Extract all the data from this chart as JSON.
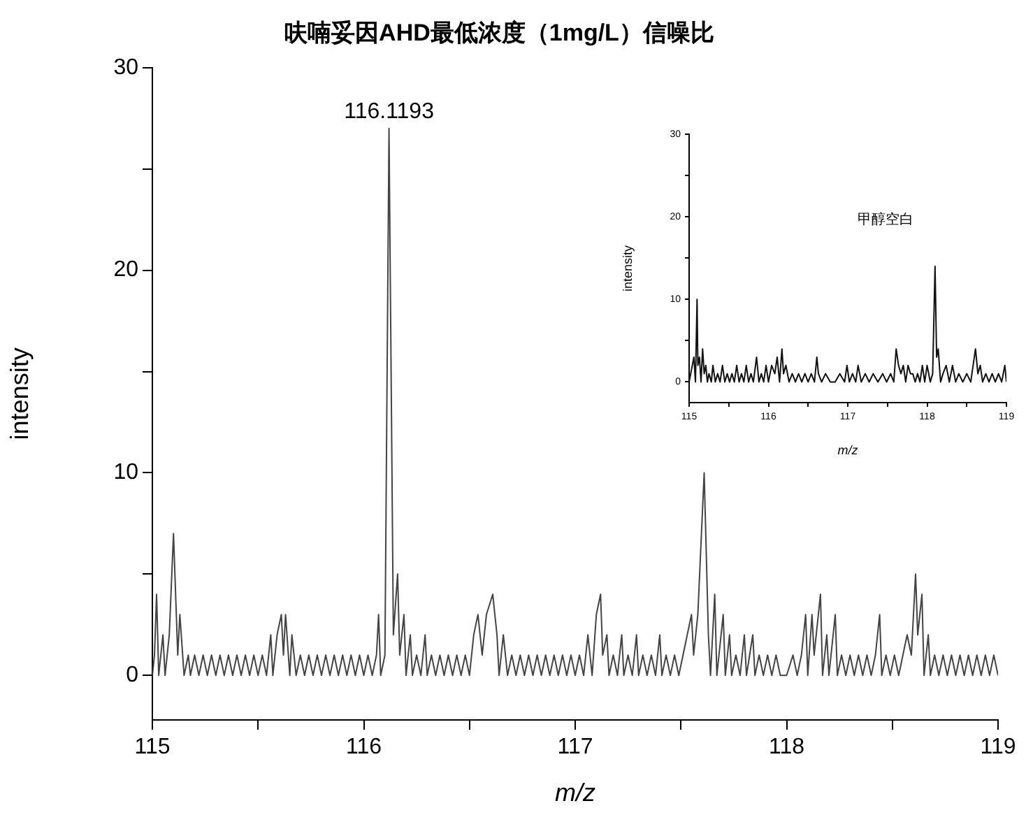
{
  "chart_data": [
    {
      "type": "line",
      "title": "呋喃妥因AHD最低浓度（1mg/L）信噪比",
      "xlabel": "m/z",
      "ylabel": "intensity",
      "grid": false,
      "legend": false,
      "marker": "none",
      "line_style": "solid",
      "xlim": [
        115,
        119
      ],
      "ylim": [
        -2.2,
        30
      ],
      "xticks": [
        115,
        {
          "value": 115.5,
          "label": null
        },
        116,
        {
          "value": 116.5,
          "label": null
        },
        117,
        {
          "value": 117.5,
          "label": null
        },
        118,
        {
          "value": 118.5,
          "label": null
        },
        119
      ],
      "yticks": [
        0,
        {
          "value": 5,
          "label": null
        },
        10,
        {
          "value": 15,
          "label": null
        },
        20,
        {
          "value": 25,
          "label": null
        },
        30
      ],
      "annotations": [
        {
          "text": "116.1193",
          "x": 116.1193,
          "y": 27
        }
      ],
      "series": [
        {
          "color": "#444444",
          "x": [
            115.0,
            115.01,
            115.02,
            115.03,
            115.05,
            115.06,
            115.08,
            115.1,
            115.12,
            115.13,
            115.15,
            115.17,
            115.18,
            115.2,
            115.22,
            115.24,
            115.26,
            115.28,
            115.3,
            115.32,
            115.34,
            115.36,
            115.38,
            115.4,
            115.42,
            115.44,
            115.46,
            115.48,
            115.5,
            115.52,
            115.54,
            115.56,
            115.57,
            115.59,
            115.61,
            115.62,
            115.63,
            115.65,
            115.66,
            115.68,
            115.7,
            115.72,
            115.74,
            115.76,
            115.78,
            115.8,
            115.82,
            115.84,
            115.86,
            115.88,
            115.9,
            115.92,
            115.94,
            115.96,
            115.98,
            116.0,
            116.02,
            116.04,
            116.06,
            116.07,
            116.08,
            116.1,
            116.1193,
            116.14,
            116.16,
            116.17,
            116.19,
            116.2,
            116.22,
            116.23,
            116.25,
            116.27,
            116.29,
            116.3,
            116.32,
            116.34,
            116.36,
            116.38,
            116.4,
            116.42,
            116.44,
            116.46,
            116.48,
            116.5,
            116.52,
            116.54,
            116.56,
            116.58,
            116.61,
            116.63,
            116.64,
            116.66,
            116.68,
            116.7,
            116.72,
            116.74,
            116.76,
            116.78,
            116.8,
            116.82,
            116.84,
            116.86,
            116.88,
            116.9,
            116.92,
            116.94,
            116.96,
            116.98,
            117.0,
            117.02,
            117.04,
            117.06,
            117.08,
            117.1,
            117.12,
            117.13,
            117.15,
            117.16,
            117.18,
            117.2,
            117.22,
            117.23,
            117.25,
            117.27,
            117.29,
            117.3,
            117.32,
            117.34,
            117.36,
            117.38,
            117.4,
            117.41,
            117.43,
            117.45,
            117.47,
            117.49,
            117.51,
            117.53,
            117.55,
            117.56,
            117.58,
            117.61,
            117.63,
            117.64,
            117.66,
            117.67,
            117.7,
            117.71,
            117.73,
            117.74,
            117.76,
            117.78,
            117.8,
            117.81,
            117.84,
            117.85,
            117.87,
            117.89,
            117.91,
            117.93,
            117.95,
            117.97,
            118.0,
            118.03,
            118.05,
            118.07,
            118.09,
            118.1,
            118.12,
            118.13,
            118.16,
            118.17,
            118.19,
            118.2,
            118.23,
            118.24,
            118.26,
            118.28,
            118.3,
            118.32,
            118.34,
            118.36,
            118.38,
            118.4,
            118.42,
            118.44,
            118.45,
            118.47,
            118.49,
            118.51,
            118.53,
            118.55,
            118.57,
            118.59,
            118.61,
            118.62,
            118.64,
            118.65,
            118.67,
            118.68,
            118.7,
            118.72,
            118.74,
            118.76,
            118.78,
            118.8,
            118.82,
            118.84,
            118.86,
            118.88,
            118.9,
            118.92,
            118.94,
            118.96,
            118.98,
            119.0
          ],
          "values": [
            0,
            1,
            4,
            0,
            2,
            0,
            2,
            7,
            1,
            3,
            0,
            1,
            0,
            1,
            0,
            1,
            0,
            1,
            0,
            1,
            0,
            1,
            0,
            1,
            0,
            1,
            0,
            1,
            0,
            1,
            0,
            2,
            0,
            2,
            3,
            1,
            3,
            0,
            2,
            0,
            1,
            0,
            1,
            0,
            1,
            0,
            1,
            0,
            1,
            0,
            1,
            0,
            1,
            0,
            1,
            0,
            1,
            0,
            1,
            3,
            0,
            1,
            27,
            2,
            5,
            1,
            3,
            0,
            2,
            0,
            1,
            0,
            2,
            0,
            1,
            0,
            1,
            0,
            1,
            0,
            1,
            0,
            1,
            0,
            2,
            3,
            1,
            3,
            4,
            2,
            0,
            2,
            0,
            1,
            0,
            1,
            0,
            1,
            0,
            1,
            0,
            1,
            0,
            1,
            0,
            1,
            0,
            1,
            0,
            1,
            0,
            2,
            0,
            3,
            4,
            1,
            2,
            0,
            1,
            0,
            2,
            0,
            1,
            0,
            2,
            0,
            1,
            0,
            1,
            0,
            2,
            0,
            1,
            0,
            1,
            0,
            1,
            2,
            3,
            1,
            3,
            10,
            2,
            0,
            4,
            0,
            3,
            0,
            2,
            0,
            1,
            0,
            2,
            0,
            2,
            0,
            1,
            0,
            1,
            0,
            1,
            0,
            0,
            1,
            0,
            1,
            3,
            0,
            3,
            1,
            4,
            0,
            2,
            0,
            3,
            0,
            1,
            0,
            1,
            0,
            1,
            0,
            1,
            0,
            1,
            3,
            0,
            1,
            0,
            1,
            0,
            1,
            2,
            1,
            5,
            2,
            4,
            0,
            2,
            0,
            1,
            0,
            1,
            0,
            1,
            0,
            1,
            0,
            1,
            0,
            1,
            0,
            1,
            0,
            1,
            0
          ]
        }
      ]
    },
    {
      "type": "line",
      "xlabel": "m/z",
      "ylabel": "intensity",
      "grid": false,
      "legend": false,
      "marker": "none",
      "line_style": "solid",
      "xlim": [
        115,
        119
      ],
      "ylim": [
        -2.5,
        30
      ],
      "xticks": [
        115,
        {
          "value": 115.5,
          "label": null
        },
        116,
        {
          "value": 116.5,
          "label": null
        },
        117,
        {
          "value": 117.5,
          "label": null
        },
        118,
        {
          "value": 118.5,
          "label": null
        },
        119
      ],
      "yticks": [
        0,
        {
          "value": 5,
          "label": null
        },
        10,
        {
          "value": 15,
          "label": null
        },
        20,
        {
          "value": 25,
          "label": null
        },
        30
      ],
      "annotations": [
        "甲醇空白"
      ],
      "series": [
        {
          "color": "#111111",
          "x": [
            115.0,
            115.04,
            115.06,
            115.08,
            115.1,
            115.11,
            115.13,
            115.15,
            115.17,
            115.19,
            115.21,
            115.23,
            115.25,
            115.28,
            115.3,
            115.33,
            115.36,
            115.39,
            115.42,
            115.45,
            115.48,
            115.51,
            115.54,
            115.57,
            115.6,
            115.63,
            115.66,
            115.69,
            115.72,
            115.75,
            115.78,
            115.81,
            115.85,
            115.88,
            115.91,
            115.94,
            115.97,
            116.0,
            116.04,
            116.08,
            116.11,
            116.14,
            116.17,
            116.19,
            116.22,
            116.26,
            116.3,
            116.34,
            116.38,
            116.42,
            116.46,
            116.5,
            116.54,
            116.58,
            116.61,
            116.63,
            116.67,
            116.72,
            116.78,
            116.84,
            116.9,
            116.96,
            116.99,
            117.02,
            117.06,
            117.1,
            117.13,
            117.17,
            117.22,
            117.27,
            117.32,
            117.38,
            117.44,
            117.49,
            117.54,
            117.58,
            117.61,
            117.64,
            117.67,
            117.7,
            117.73,
            117.76,
            117.79,
            117.82,
            117.85,
            117.88,
            117.91,
            117.94,
            117.97,
            118.0,
            118.04,
            118.07,
            118.1,
            118.12,
            118.14,
            118.17,
            118.2,
            118.24,
            118.28,
            118.32,
            118.36,
            118.4,
            118.45,
            118.5,
            118.55,
            118.58,
            118.61,
            118.64,
            118.67,
            118.7,
            118.74,
            118.78,
            118.82,
            118.86,
            118.9,
            118.94,
            118.98,
            119.0
          ],
          "values": [
            0,
            2,
            3,
            0,
            10,
            2,
            3,
            0,
            4,
            1,
            2,
            0,
            1,
            0,
            2,
            0,
            1,
            0,
            2,
            0,
            1,
            0,
            1,
            0,
            2,
            0,
            1,
            0,
            2,
            0,
            1,
            0,
            3,
            0,
            1,
            0,
            2,
            0,
            2,
            1,
            3,
            0,
            4,
            1,
            2,
            0,
            1,
            0,
            1,
            0,
            1,
            0,
            1,
            0,
            3,
            1,
            0,
            1,
            0,
            0,
            1,
            0,
            2,
            0,
            1,
            0,
            2,
            0,
            1,
            0,
            1,
            0,
            1,
            0,
            1,
            0,
            4,
            2,
            1,
            2,
            0,
            2,
            1,
            1,
            0,
            1,
            0,
            2,
            0,
            2,
            0,
            1,
            14,
            3,
            4,
            0,
            1,
            2,
            0,
            2,
            0,
            1,
            0,
            1,
            0,
            2,
            4,
            1,
            2,
            0,
            1,
            0,
            1,
            0,
            1,
            0,
            2,
            0
          ]
        }
      ]
    }
  ]
}
